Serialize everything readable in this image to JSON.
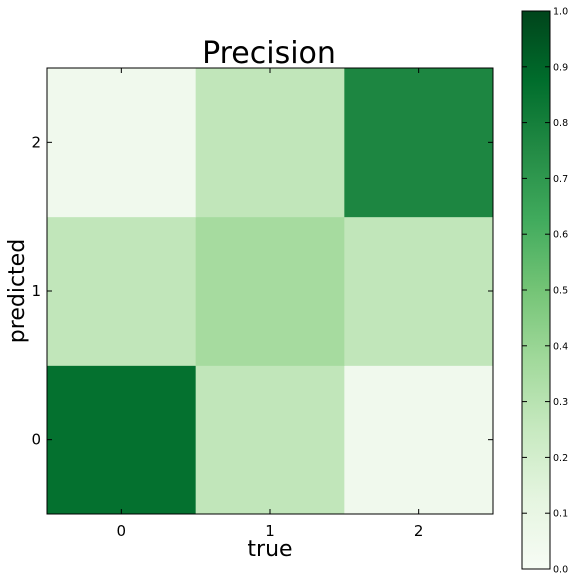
{
  "chart_data": {
    "type": "heatmap",
    "title": "Precision",
    "xlabel": "true",
    "ylabel": "predicted",
    "x_categories": [
      "0",
      "1",
      "2"
    ],
    "y_categories": [
      "0",
      "1",
      "2"
    ],
    "values": [
      [
        0.86,
        0.27,
        0.05
      ],
      [
        0.27,
        0.36,
        0.27
      ],
      [
        0.05,
        0.27,
        0.77
      ]
    ],
    "value_note_rows": "rows indexed by predicted (0..2), columns by true (0..2)",
    "colormap": "Greens",
    "colorbar": {
      "range": [
        0.0,
        1.0
      ],
      "ticks": [
        "0.0",
        "0.1",
        "0.2",
        "0.3",
        "0.4",
        "0.5",
        "0.6",
        "0.7",
        "0.8",
        "0.9",
        "1.0"
      ]
    },
    "grid": false,
    "colors": {
      "low": "#f7fcf5",
      "high": "#00441b"
    }
  }
}
